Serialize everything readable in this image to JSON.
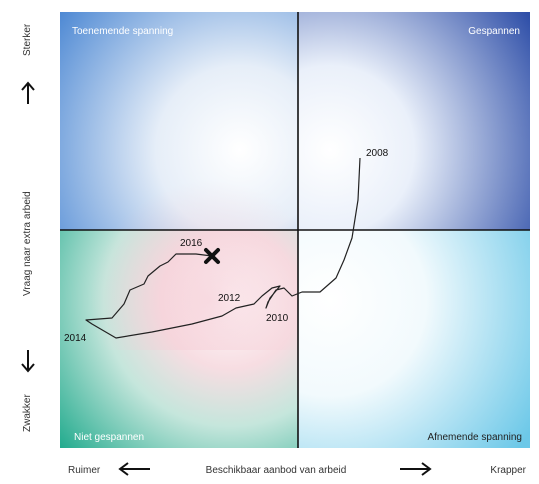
{
  "quadrants": {
    "top_left": "Toenemende spanning",
    "top_right": "Gespannen",
    "bottom_left": "Niet gespannen",
    "bottom_right": "Afnemende spanning"
  },
  "y_axis": {
    "label": "Vraag naar extra arbeid",
    "top_end": "Sterker",
    "bottom_end": "Zwakker"
  },
  "x_axis": {
    "label": "Beschikbaar aanbod van arbeid",
    "left_end": "Ruimer",
    "right_end": "Krapper"
  },
  "year_labels": [
    "2008",
    "2010",
    "2012",
    "2014",
    "2016"
  ],
  "colors": {
    "top_left": "#3f7fd0",
    "top_right": "#2f4fa8",
    "bottom_left": "#1aa88a",
    "bottom_right": "#6cc8e8",
    "pink_glow": "#f4c4cf",
    "line": "#222222"
  }
}
